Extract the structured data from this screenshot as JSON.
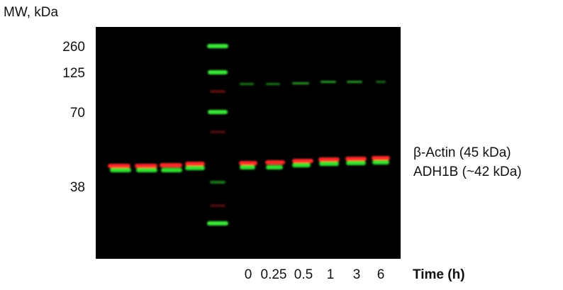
{
  "header": "MW, kDa",
  "mw_markers": [
    "260",
    "125",
    "70",
    "38"
  ],
  "band_labels": [
    "β-Actin (45 kDa)",
    "ADH1B (~42 kDa)"
  ],
  "time_axis": {
    "label": "Time (h)",
    "points": [
      "0",
      "0.25",
      "0.5",
      "1",
      "3",
      "6"
    ]
  }
}
